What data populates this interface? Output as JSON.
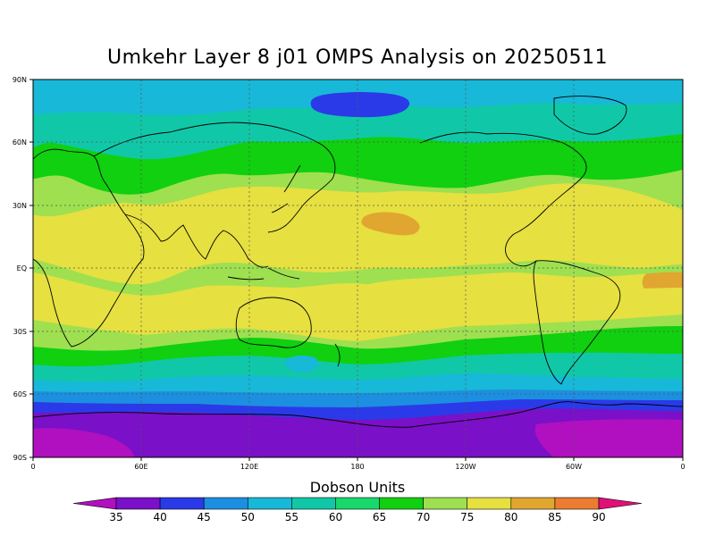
{
  "title": "Umkehr Layer 8 j01 OMPS Analysis on 20250511",
  "colorbar": {
    "title": "Dobson Units",
    "labels": [
      "35",
      "40",
      "45",
      "50",
      "55",
      "60",
      "65",
      "70",
      "75",
      "80",
      "85",
      "90"
    ],
    "colors": [
      "#7a10c8",
      "#2b3ae8",
      "#1c8fe0",
      "#18b8d8",
      "#10c8a8",
      "#18d86c",
      "#10d010",
      "#9ee050",
      "#e6e040",
      "#e0a630",
      "#ec7c30",
      "#f01010"
    ],
    "low_color": "#b010c0",
    "high_color": "#e01078"
  },
  "chart_data": {
    "type": "heatmap",
    "title": "Umkehr Layer 8 j01 OMPS Analysis on 20250511",
    "units": "Dobson Units",
    "x_ticks": [
      "0",
      "60E",
      "120E",
      "180",
      "120W",
      "60W",
      "0"
    ],
    "y_ticks": [
      "90N",
      "60N",
      "30N",
      "EQ",
      "30S",
      "60S",
      "90S"
    ],
    "xlim": [
      0,
      360
    ],
    "ylim": [
      -90,
      90
    ],
    "grid": true,
    "contour_levels": [
      35,
      40,
      45,
      50,
      55,
      60,
      65,
      70,
      75,
      80,
      85,
      90
    ],
    "zonal_bands": [
      {
        "lat_range": [
          80,
          90
        ],
        "value_range": [
          50,
          55
        ]
      },
      {
        "lat_range": [
          65,
          80
        ],
        "value_range": [
          55,
          60
        ]
      },
      {
        "lat_range": [
          50,
          65
        ],
        "value_range": [
          60,
          65
        ]
      },
      {
        "lat_range": [
          35,
          50
        ],
        "value_range": [
          65,
          70
        ]
      },
      {
        "lat_range": [
          -10,
          35
        ],
        "value_range": [
          70,
          75
        ]
      },
      {
        "lat_range": [
          -25,
          -10
        ],
        "value_range": [
          70,
          75
        ]
      },
      {
        "lat_range": [
          -40,
          -25
        ],
        "value_range": [
          65,
          70
        ]
      },
      {
        "lat_range": [
          -50,
          -40
        ],
        "value_range": [
          60,
          65
        ]
      },
      {
        "lat_range": [
          -60,
          -50
        ],
        "value_range": [
          50,
          60
        ]
      },
      {
        "lat_range": [
          -70,
          -60
        ],
        "value_range": [
          40,
          50
        ]
      },
      {
        "lat_range": [
          -90,
          -70
        ],
        "value_range": [
          35,
          40
        ]
      }
    ],
    "local_features": [
      {
        "lon": 150,
        "lat": 82,
        "value_range": [
          45,
          50
        ]
      },
      {
        "lon": 185,
        "lat": 25,
        "value_range": [
          75,
          80
        ]
      },
      {
        "lon": 0,
        "lat": -5,
        "value_range": [
          75,
          80
        ]
      },
      {
        "lon": 355,
        "lat": -5,
        "value_range": [
          75,
          80
        ]
      },
      {
        "lon": 30,
        "lat": -85,
        "value_range": [
          35,
          40
        ]
      }
    ]
  }
}
